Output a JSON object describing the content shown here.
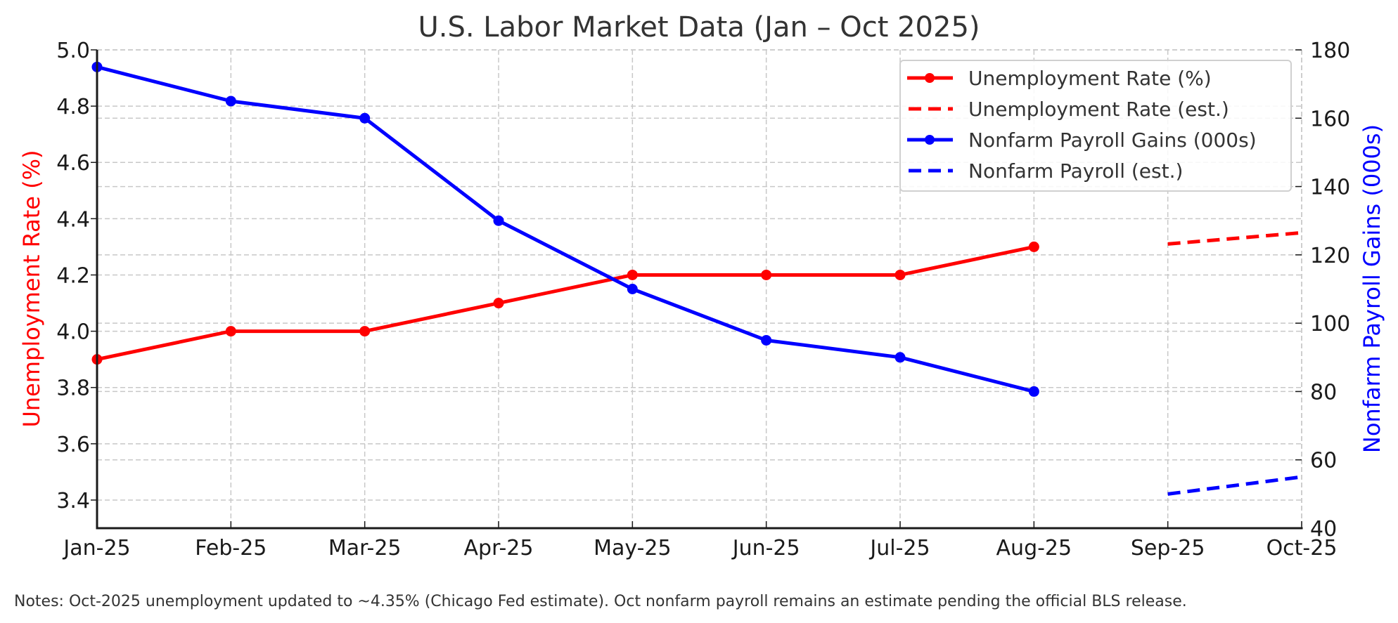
{
  "chart_data": {
    "type": "line",
    "title": "U.S. Labor Market Data (Jan – Oct 2025)",
    "xlabel": "",
    "ylabel": "Unemployment Rate (%)",
    "y2label": "Nonfarm Payroll Gains (000s)",
    "categories": [
      "Jan-25",
      "Feb-25",
      "Mar-25",
      "Apr-25",
      "May-25",
      "Jun-25",
      "Jul-25",
      "Aug-25",
      "Sep-25",
      "Oct-25"
    ],
    "ylim": [
      3.3,
      5.0
    ],
    "y2lim": [
      40,
      180
    ],
    "yticks": [
      "3.4",
      "3.6",
      "3.8",
      "4.0",
      "4.2",
      "4.4",
      "4.6",
      "4.8",
      "5.0"
    ],
    "y2ticks": [
      "40",
      "60",
      "80",
      "100",
      "120",
      "140",
      "160",
      "180"
    ],
    "grid": true,
    "legend_position": "upper right",
    "series": [
      {
        "name": "Unemployment Rate (%)",
        "axis": "left",
        "color": "#ff0000",
        "style": "solid",
        "marker": "circle",
        "x": [
          "Jan-25",
          "Feb-25",
          "Mar-25",
          "Apr-25",
          "May-25",
          "Jun-25",
          "Jul-25",
          "Aug-25"
        ],
        "values": [
          3.9,
          4.0,
          4.0,
          4.1,
          4.2,
          4.2,
          4.2,
          4.3
        ]
      },
      {
        "name": "Unemployment Rate (est.)",
        "axis": "left",
        "color": "#ff0000",
        "style": "dashed",
        "marker": "none",
        "x": [
          "Sep-25",
          "Oct-25"
        ],
        "values": [
          4.31,
          4.35
        ]
      },
      {
        "name": "Nonfarm Payroll Gains (000s)",
        "axis": "right",
        "color": "#0000ff",
        "style": "solid",
        "marker": "circle",
        "x": [
          "Jan-25",
          "Feb-25",
          "Mar-25",
          "Apr-25",
          "May-25",
          "Jun-25",
          "Jul-25",
          "Aug-25"
        ],
        "values": [
          175,
          165,
          160,
          130,
          110,
          95,
          90,
          80
        ]
      },
      {
        "name": "Nonfarm Payroll (est.)",
        "axis": "right",
        "color": "#0000ff",
        "style": "dashed",
        "marker": "none",
        "x": [
          "Sep-25",
          "Oct-25"
        ],
        "values": [
          50,
          55
        ]
      }
    ],
    "annotations": [
      "Notes: Oct-2025 unemployment updated to ~4.35% (Chicago Fed estimate). Oct nonfarm payroll remains an estimate pending the official BLS release."
    ]
  },
  "title": "U.S. Labor Market Data (Jan – Oct 2025)",
  "axes": {
    "left_label": "Unemployment Rate (%)",
    "right_label": "Nonfarm Payroll Gains (000s)"
  },
  "legend": {
    "items": [
      {
        "label": "Unemployment Rate (%)"
      },
      {
        "label": "Unemployment Rate (est.)"
      },
      {
        "label": "Nonfarm Payroll Gains (000s)"
      },
      {
        "label": "Nonfarm Payroll (est.)"
      }
    ]
  },
  "note": "Notes: Oct-2025 unemployment updated to ~4.35% (Chicago Fed estimate). Oct nonfarm payroll remains an estimate pending the official BLS release."
}
